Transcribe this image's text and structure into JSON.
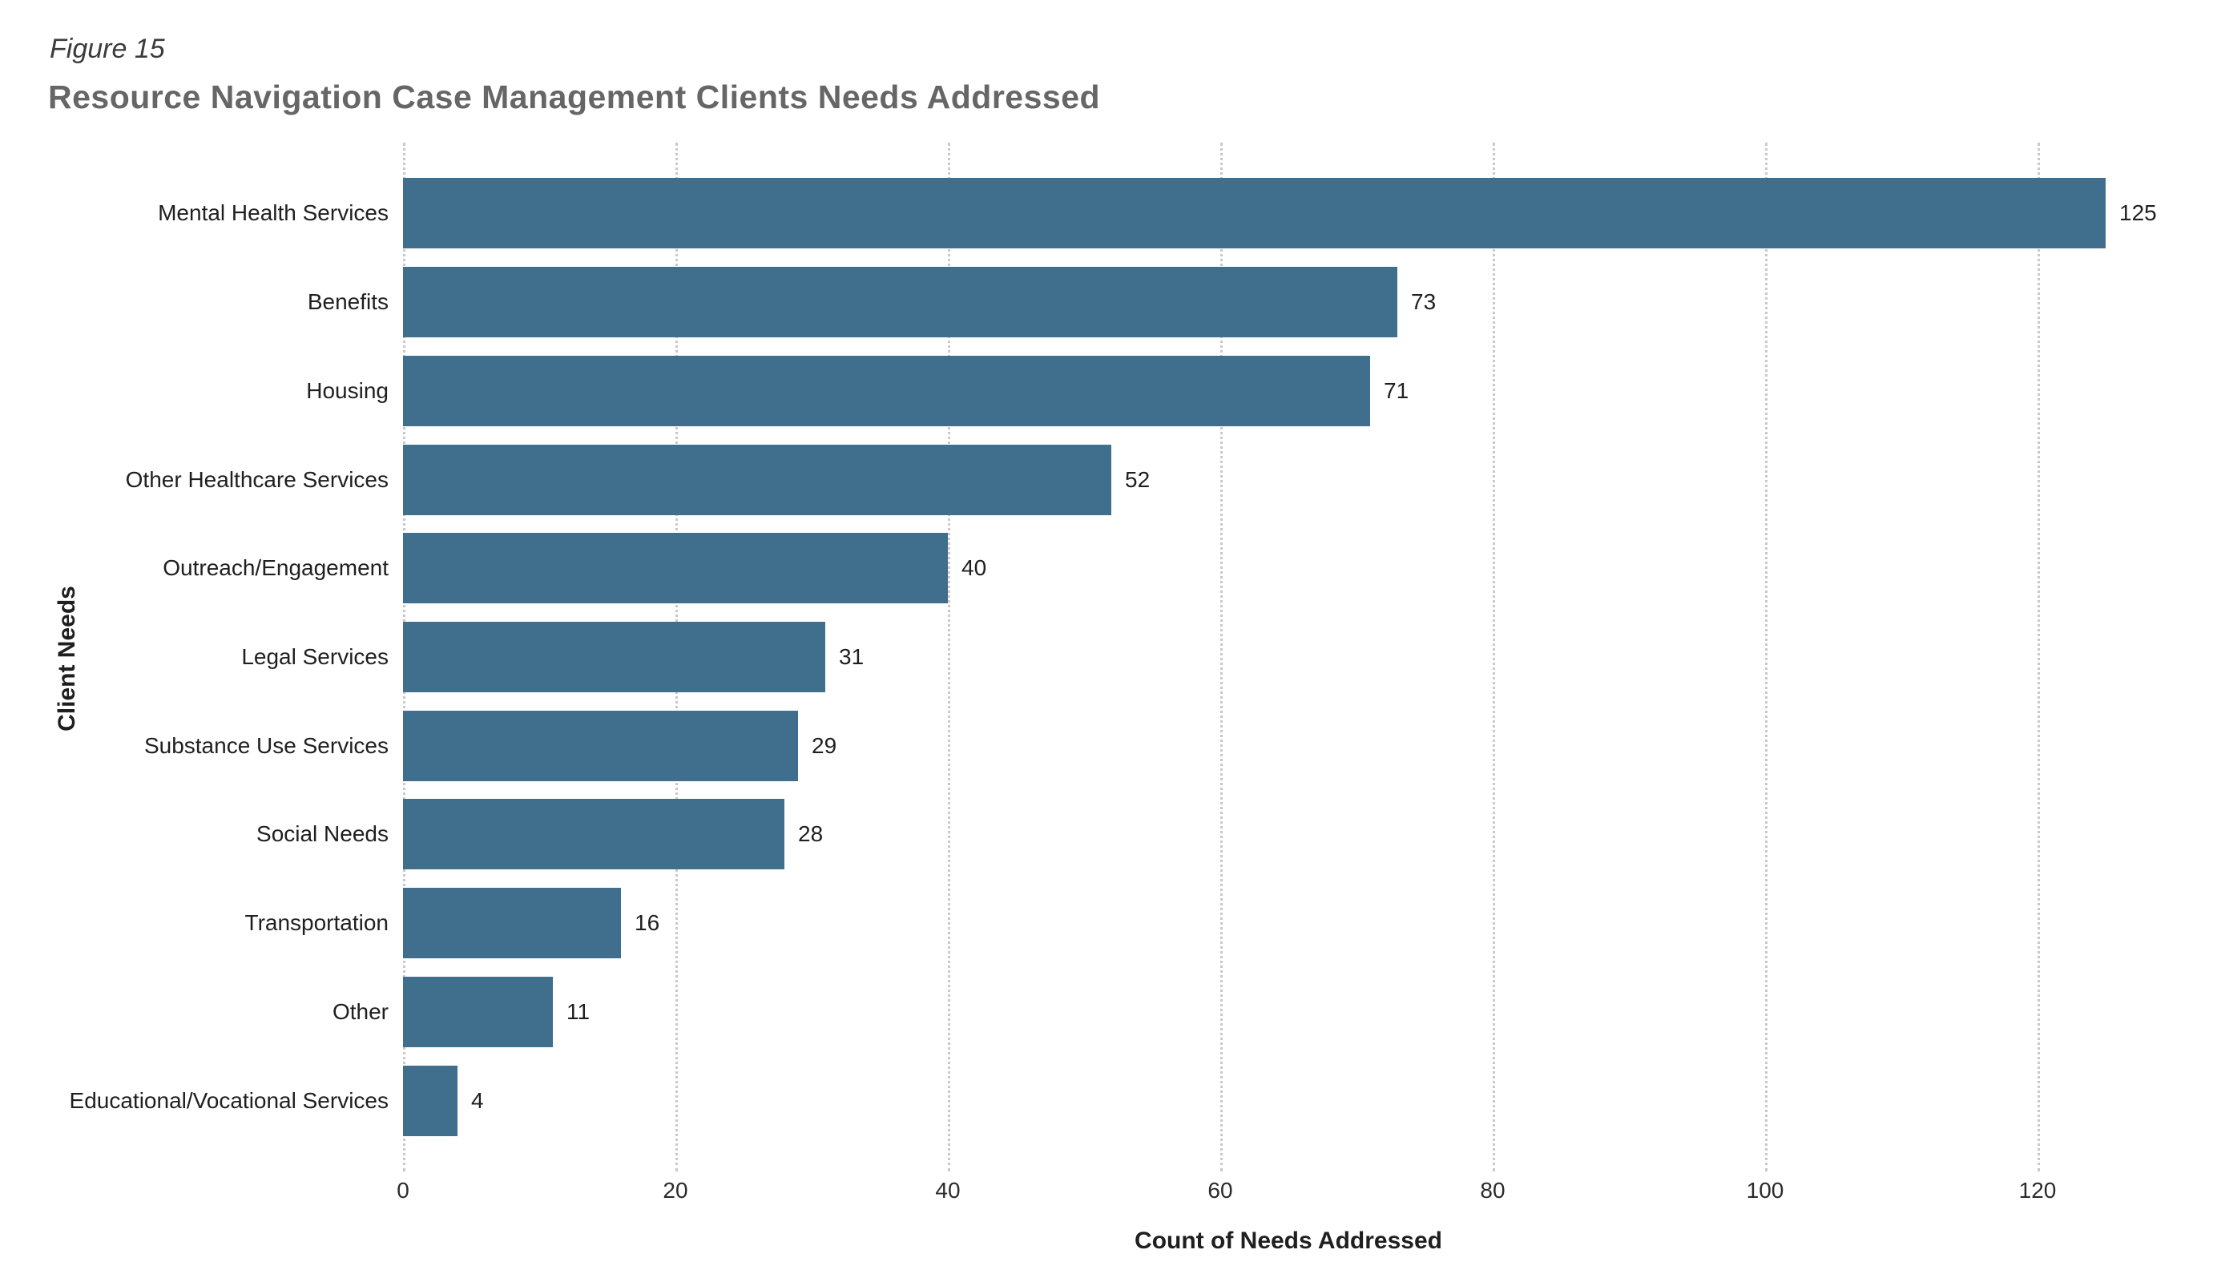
{
  "figure_label": "Figure 15",
  "title": "Resource Navigation Case Management Clients Needs Addressed",
  "chart_data": {
    "type": "bar",
    "orientation": "horizontal",
    "title": "Resource Navigation Case Management Clients Needs Addressed",
    "categories": [
      "Mental Health Services",
      "Benefits",
      "Housing",
      "Other Healthcare Services",
      "Outreach/Engagement",
      "Legal Services",
      "Substance Use Services",
      "Social Needs",
      "Transportation",
      "Other",
      "Educational/Vocational Services"
    ],
    "values": [
      125,
      73,
      71,
      52,
      40,
      31,
      29,
      28,
      16,
      11,
      4
    ],
    "xlabel": "Count of Needs Addressed",
    "ylabel": "Client Needs",
    "xlim": [
      0,
      130
    ],
    "xticks": [
      0,
      20,
      40,
      60,
      80,
      100,
      120
    ],
    "grid": "vertical-dotted",
    "legend": "none",
    "data_labels": true,
    "bar_color": "#3F6F8C",
    "gridline_color": "#C9C9C9"
  }
}
